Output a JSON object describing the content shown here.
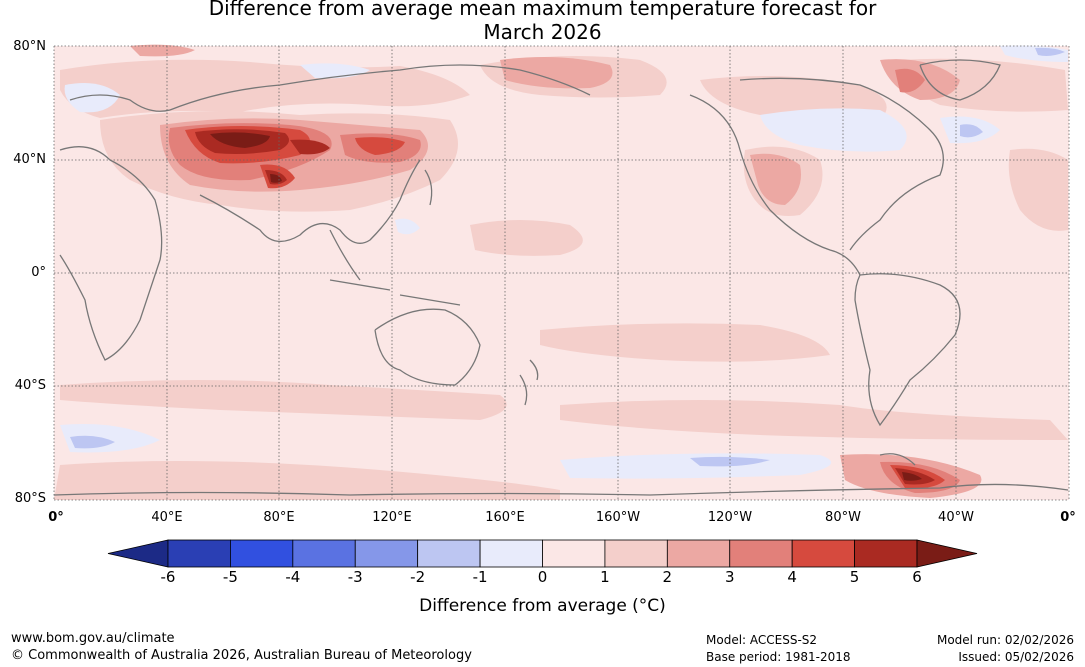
{
  "title": {
    "line1": "Difference from average mean maximum temperature forecast for",
    "line2": "March 2026"
  },
  "map": {
    "lat_labels": [
      "80°N",
      "40°N",
      "0°",
      "40°S",
      "80°S"
    ],
    "lon_labels": [
      "0°",
      "40°E",
      "80°E",
      "120°E",
      "160°E",
      "160°W",
      "120°W",
      "80°W",
      "40°W",
      "0°"
    ],
    "land_color": "#fbe7e6",
    "coast_color": "#777777",
    "anomaly_regions": [
      {
        "name": "central-asia-warm-anomaly",
        "value": 5
      },
      {
        "name": "tibet-warm-anomaly",
        "value": 4
      },
      {
        "name": "western-us-warm-anomaly",
        "value": 2
      },
      {
        "name": "alaska-warm-anomaly",
        "value": 3
      },
      {
        "name": "southern-ocean-warm-anomaly",
        "value": 6
      },
      {
        "name": "canada-cool-anomaly",
        "value": -1
      },
      {
        "name": "southern-ocean-cool-anomaly",
        "value": -1
      }
    ]
  },
  "colorbar": {
    "colors": [
      "#1c2a86",
      "#2a3fb4",
      "#3150e0",
      "#5a72e2",
      "#8597e9",
      "#bdc6f2",
      "#e8ebfb",
      "#fbe7e6",
      "#f4cfcb",
      "#eca8a3",
      "#e2807a",
      "#d64a3e",
      "#aa2a22",
      "#7a1c16"
    ],
    "tick_labels": [
      "-6",
      "-5",
      "-4",
      "-3",
      "-2",
      "-1",
      "0",
      "1",
      "2",
      "3",
      "4",
      "5",
      "6"
    ],
    "label": "Difference from average (°C)"
  },
  "footer": {
    "website": "www.bom.gov.au/climate",
    "copyright": "© Commonwealth of Australia 2026, Australian Bureau of Meteorology",
    "model": "Model: ACCESS-S2",
    "base_period": "Base period: 1981-2018",
    "model_run": "Model run: 02/02/2026",
    "issued": "Issued: 05/02/2026"
  }
}
